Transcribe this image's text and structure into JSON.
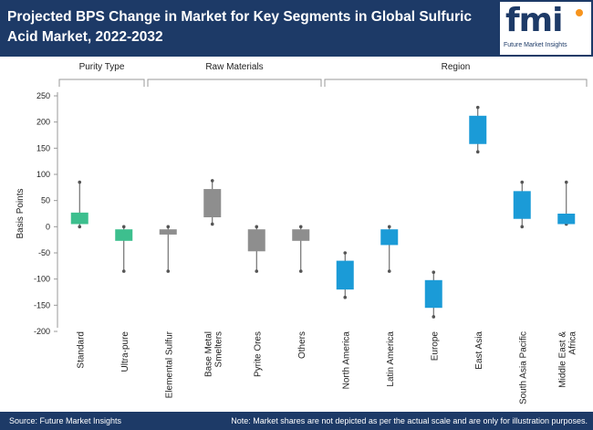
{
  "header": {
    "title": "Projected BPS Change in Market for Key Segments in Global Sulfuric Acid Market, 2022-2032",
    "logo_mark": "fmi",
    "logo_sub": "Future Market Insights"
  },
  "footer": {
    "source": "Source: Future Market Insights",
    "note": "Note: Market shares are not depicted as per the actual scale and are only for illustration purposes."
  },
  "chart_data": {
    "type": "box",
    "ylabel": "Basis Points",
    "ylim": [
      -200,
      250
    ],
    "yticks": [
      250,
      200,
      150,
      100,
      50,
      0,
      -50,
      -100,
      -150,
      -200
    ],
    "groups": [
      {
        "label": "Purity Type",
        "start": 0,
        "end": 1
      },
      {
        "label": "Raw Materials",
        "start": 2,
        "end": 5
      },
      {
        "label": "Region",
        "start": 6,
        "end": 11
      }
    ],
    "categories": [
      {
        "label": "Standard",
        "min": 0,
        "q1": 5,
        "q3": 27,
        "max": 85,
        "color": "#3dbf8e"
      },
      {
        "label": "Ultra-pure",
        "min": -85,
        "q1": -27,
        "q3": -5,
        "max": 0,
        "color": "#3dbf8e"
      },
      {
        "label": "Elemental Sulfur",
        "min": -85,
        "q1": -15,
        "q3": -5,
        "max": 0,
        "color": "#8e8e8e"
      },
      {
        "label": "Base Metal Smelters",
        "min": 5,
        "q1": 18,
        "q3": 72,
        "max": 88,
        "color": "#8e8e8e"
      },
      {
        "label": "Pyrite Ores",
        "min": -85,
        "q1": -47,
        "q3": -5,
        "max": 0,
        "color": "#8e8e8e"
      },
      {
        "label": "Others",
        "min": -85,
        "q1": -27,
        "q3": -5,
        "max": 0,
        "color": "#8e8e8e"
      },
      {
        "label": "North America",
        "min": -135,
        "q1": -120,
        "q3": -65,
        "max": -50,
        "color": "#1b9bd7"
      },
      {
        "label": "Latin America",
        "min": -85,
        "q1": -35,
        "q3": -5,
        "max": 0,
        "color": "#1b9bd7"
      },
      {
        "label": "Europe",
        "min": -172,
        "q1": -155,
        "q3": -102,
        "max": -87,
        "color": "#1b9bd7"
      },
      {
        "label": "East Asia",
        "min": 143,
        "q1": 158,
        "q3": 212,
        "max": 228,
        "color": "#1b9bd7"
      },
      {
        "label": "South Asia Pacific",
        "min": 0,
        "q1": 15,
        "q3": 68,
        "max": 85,
        "color": "#1b9bd7"
      },
      {
        "label": "Middle East & Africa",
        "min": 5,
        "q1": 5,
        "q3": 25,
        "max": 85,
        "color": "#1b9bd7"
      }
    ]
  }
}
